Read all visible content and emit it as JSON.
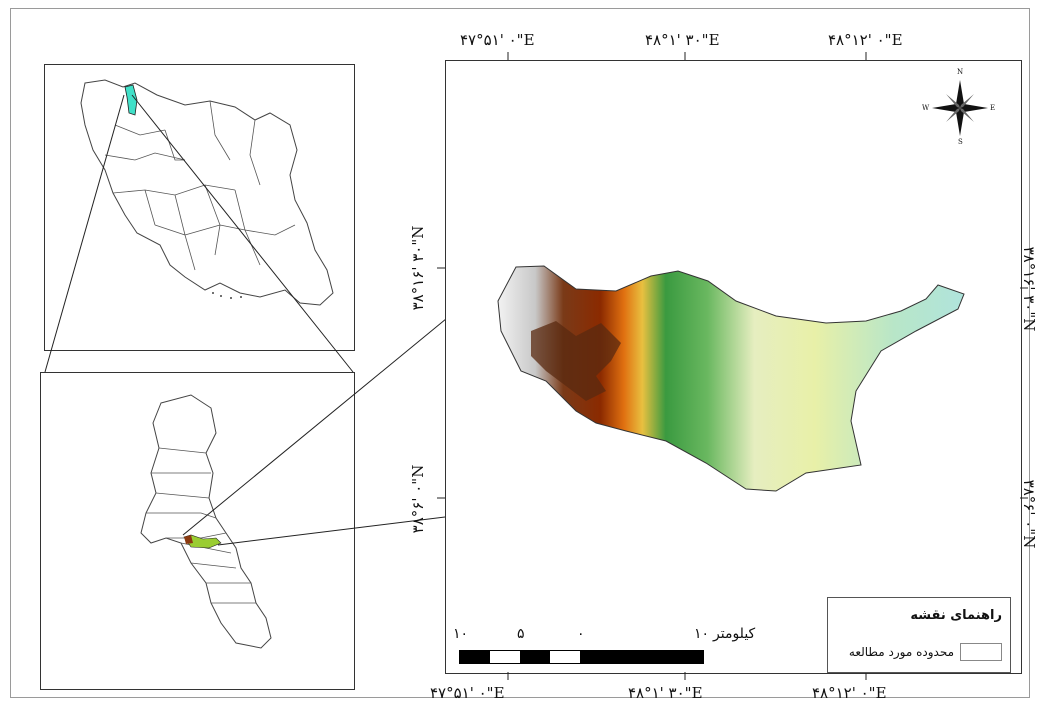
{
  "top_ticks": [
    "۴۷°۵۱' ۰\"E",
    "۴۸°۱' ۳۰\"E",
    "۴۸°۱۲' ۰\"E"
  ],
  "bottom_ticks": [
    "۴۷°۵۱' ۰\"E",
    "۴۸°۱' ۳۰\"E",
    "۴۸°۱۲' ۰\"E"
  ],
  "left_ticks": [
    "۳۸°۱۶' ۳۰\"N",
    "۳۸°۶' ۰\"N"
  ],
  "right_ticks": [
    "۳۸°۱۶' ۳۰\"N",
    "۳۸°۶' ۰\"N"
  ],
  "compass_letters": {
    "n": "N",
    "s": "S",
    "e": "E",
    "w": "W"
  },
  "scale": {
    "unit": "کیلومتر",
    "labels": [
      "۱۰",
      "۵",
      "۰",
      "۱۰"
    ]
  },
  "legend": {
    "title": "راهنمای نقشه",
    "item": "محدوده مورد مطالعه"
  },
  "colors": {
    "study_area_iran": "#40e0c8",
    "elev_high": "#5a2a10",
    "elev_mid": "#2e8b3a",
    "elev_low": "#b8e6d6"
  }
}
